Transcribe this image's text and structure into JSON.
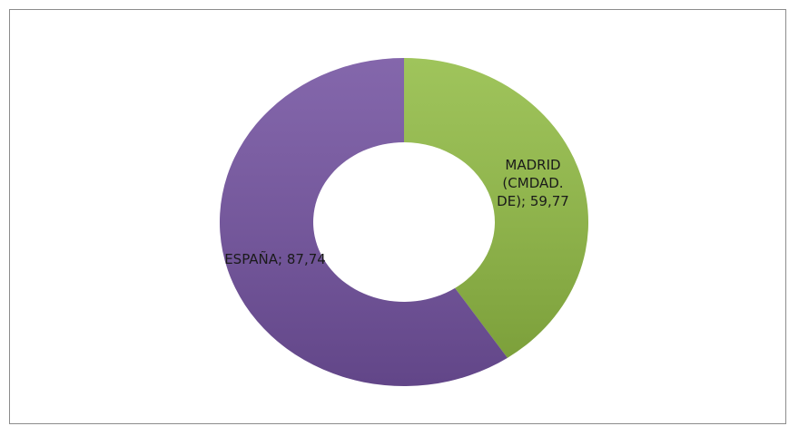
{
  "chart_data": {
    "type": "donut",
    "values": [
      59.77,
      87.74
    ],
    "value_labels": [
      "MADRID (CMDAD. DE); 59,77",
      "ESPAÑA; 87,74"
    ],
    "colors": [
      "#92bc45",
      "#7352a0"
    ]
  }
}
